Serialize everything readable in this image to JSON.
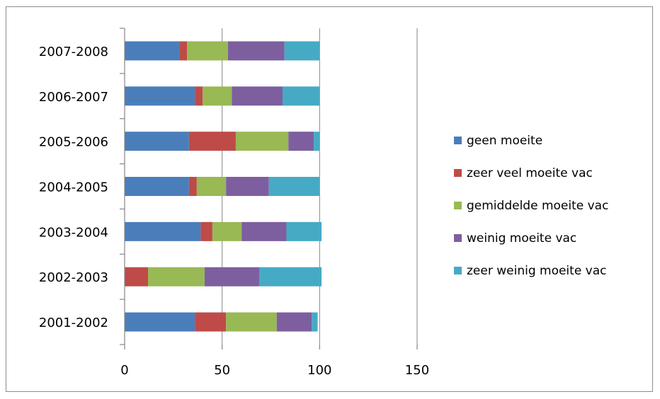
{
  "chart_data": {
    "type": "bar",
    "orientation": "horizontal",
    "stacked": true,
    "categories": [
      "2001-2002",
      "2002-2003",
      "2003-2004",
      "2004-2005",
      "2005-2006",
      "2006-2007",
      "2007-2008"
    ],
    "series": [
      {
        "name": "geen moeite",
        "color": "#4a7ebb",
        "values": [
          36,
          0,
          39,
          33,
          33,
          36,
          28
        ]
      },
      {
        "name": "zeer veel moeite vac",
        "color": "#be4b48",
        "values": [
          16,
          12,
          6,
          4,
          24,
          4,
          4
        ]
      },
      {
        "name": "gemiddelde moeite vac",
        "color": "#98b954",
        "values": [
          26,
          29,
          15,
          15,
          27,
          15,
          21
        ]
      },
      {
        "name": "weinig moeite vac",
        "color": "#7d5fa0",
        "values": [
          18,
          28,
          23,
          22,
          13,
          26,
          29
        ]
      },
      {
        "name": "zeer weinig moeite vac",
        "color": "#46aac5",
        "values": [
          3,
          32,
          18,
          26,
          3,
          19,
          18
        ]
      }
    ],
    "xlim": [
      0,
      150
    ],
    "xticks": [
      0,
      50,
      100,
      150
    ],
    "gridlines": "vertical",
    "legend_position": "right"
  }
}
